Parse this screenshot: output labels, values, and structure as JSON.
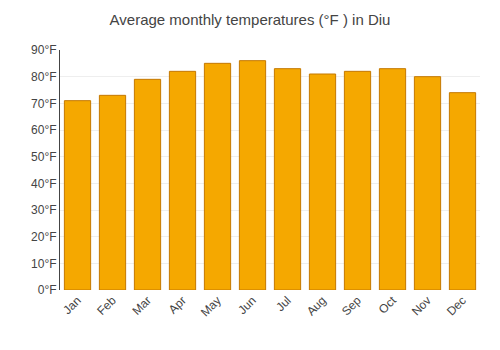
{
  "chart_data": {
    "type": "bar",
    "title": "Average monthly temperatures (°F ) in Diu",
    "categories": [
      "Jan",
      "Feb",
      "Mar",
      "Apr",
      "May",
      "Jun",
      "Jul",
      "Aug",
      "Sep",
      "Oct",
      "Nov",
      "Dec"
    ],
    "values": [
      71,
      73,
      79,
      82,
      85,
      86,
      83,
      81,
      82,
      83,
      80,
      74
    ],
    "color": "#F5A800",
    "ylim": [
      0,
      90
    ],
    "yticks": [
      {
        "value": 0,
        "label": "0°F"
      },
      {
        "value": 10,
        "label": "10°F"
      },
      {
        "value": 20,
        "label": "20°F"
      },
      {
        "value": 30,
        "label": "30°F"
      },
      {
        "value": 40,
        "label": "40°F"
      },
      {
        "value": 50,
        "label": "50°F"
      },
      {
        "value": 60,
        "label": "60°F"
      },
      {
        "value": 70,
        "label": "70°F"
      },
      {
        "value": 80,
        "label": "80°F"
      },
      {
        "value": 90,
        "label": "90°F"
      }
    ],
    "grid": true
  }
}
